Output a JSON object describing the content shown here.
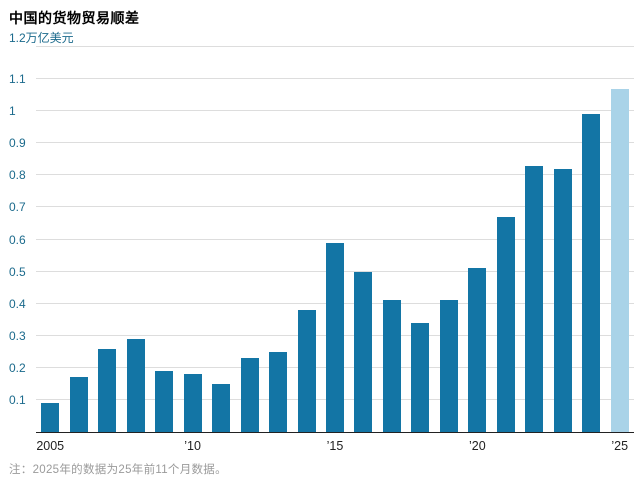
{
  "header": {
    "title": "中国的货物贸易顺差"
  },
  "note": "注：2025年的数据为25年前11个月数据。",
  "chart_data": {
    "type": "bar",
    "title": "中国的货物贸易顺差",
    "xlabel": "",
    "ylabel": "万亿美元",
    "ylim": [
      0,
      1.2
    ],
    "ytick_step": 0.1,
    "grid": true,
    "legend": "none",
    "highlight_year": 2025,
    "colors": {
      "bar": "#1375a5",
      "bar_highlight": "#a9d3e8",
      "grid": "#dddddd",
      "axis_line": "#222222",
      "y_tick_label": "#1b6a8c",
      "x_tick_label": "#222222",
      "note_text": "#9a9a9a",
      "title_text": "#000000"
    },
    "bars": [
      {
        "year": 2005,
        "value": 0.09
      },
      {
        "year": 2006,
        "value": 0.17
      },
      {
        "year": 2007,
        "value": 0.26
      },
      {
        "year": 2008,
        "value": 0.29
      },
      {
        "year": 2009,
        "value": 0.19
      },
      {
        "year": 2010,
        "value": 0.18
      },
      {
        "year": 2011,
        "value": 0.15
      },
      {
        "year": 2012,
        "value": 0.23
      },
      {
        "year": 2013,
        "value": 0.25
      },
      {
        "year": 2014,
        "value": 0.38
      },
      {
        "year": 2015,
        "value": 0.59
      },
      {
        "year": 2016,
        "value": 0.5
      },
      {
        "year": 2017,
        "value": 0.41
      },
      {
        "year": 2018,
        "value": 0.34
      },
      {
        "year": 2019,
        "value": 0.41
      },
      {
        "year": 2020,
        "value": 0.51
      },
      {
        "year": 2021,
        "value": 0.67
      },
      {
        "year": 2022,
        "value": 0.83
      },
      {
        "year": 2023,
        "value": 0.82
      },
      {
        "year": 2024,
        "value": 0.99
      },
      {
        "year": 2025,
        "value": 1.07
      }
    ],
    "yticks": [
      {
        "v": 0.1,
        "label": "0.1"
      },
      {
        "v": 0.2,
        "label": "0.2"
      },
      {
        "v": 0.3,
        "label": "0.3"
      },
      {
        "v": 0.4,
        "label": "0.4"
      },
      {
        "v": 0.5,
        "label": "0.5"
      },
      {
        "v": 0.6,
        "label": "0.6"
      },
      {
        "v": 0.7,
        "label": "0.7"
      },
      {
        "v": 0.8,
        "label": "0.8"
      },
      {
        "v": 0.9,
        "label": "0.9"
      },
      {
        "v": 1.0,
        "label": "1"
      },
      {
        "v": 1.1,
        "label": "1.1"
      },
      {
        "v": 1.2,
        "label": "1.2万亿美元",
        "unit": true
      }
    ],
    "xticks": [
      {
        "year": 2005,
        "label": "2005"
      },
      {
        "year": 2010,
        "label": "’10"
      },
      {
        "year": 2015,
        "label": "’15"
      },
      {
        "year": 2020,
        "label": "’20"
      },
      {
        "year": 2025,
        "label": "’25"
      }
    ]
  }
}
